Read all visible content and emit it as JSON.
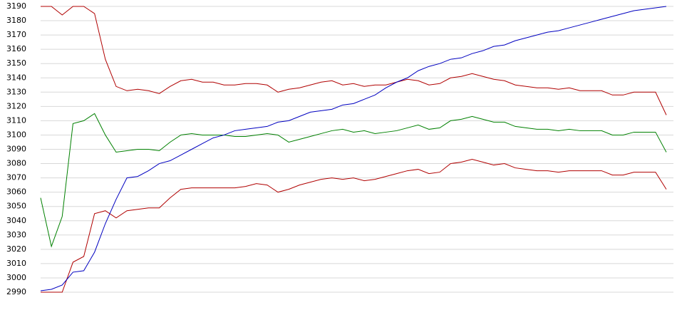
{
  "chart_data": {
    "type": "line",
    "categories": [
      null,
      null,
      null,
      null,
      null,
      null,
      null,
      null,
      null,
      null,
      null,
      null,
      null,
      null,
      null,
      null,
      null,
      null,
      null,
      null,
      null,
      null,
      null,
      null,
      null,
      null,
      null,
      null,
      null,
      null,
      null,
      null,
      null,
      null,
      null,
      null,
      null,
      null,
      null,
      null,
      null,
      null,
      null,
      null,
      null,
      null,
      null,
      null,
      null,
      null,
      null,
      null,
      null,
      null,
      null,
      null,
      null,
      null,
      null
    ],
    "series": [
      {
        "color": "#b00000",
        "values": [
          3190,
          3190,
          3184,
          3190,
          3190,
          3185,
          3153,
          3134,
          3131,
          3132,
          3131,
          3129,
          3134,
          3138,
          3139,
          3137,
          3137,
          3135,
          3135,
          3136,
          3136,
          3135,
          3130,
          3132,
          3133,
          3135,
          3137,
          3138,
          3135,
          3136,
          3134,
          3135,
          3135,
          3137,
          3139,
          3138,
          3135,
          3136,
          3140,
          3141,
          3143,
          3141,
          3139,
          3138,
          3135,
          3134,
          3133,
          3133,
          3132,
          3133,
          3131,
          3131,
          3131,
          3128,
          3128,
          3130,
          3130,
          3130,
          3114
        ]
      },
      {
        "color": "#008000",
        "values": [
          3056,
          3022,
          3043,
          3108,
          3110,
          3115,
          3100,
          3088,
          3089,
          3090,
          3090,
          3089,
          3095,
          3100,
          3101,
          3100,
          3100,
          3100,
          3099,
          3099,
          3100,
          3101,
          3100,
          3095,
          3097,
          3099,
          3101,
          3103,
          3104,
          3102,
          3103,
          3101,
          3102,
          3103,
          3105,
          3107,
          3104,
          3105,
          3110,
          3111,
          3113,
          3111,
          3109,
          3109,
          3106,
          3105,
          3104,
          3104,
          3103,
          3104,
          3103,
          3103,
          3103,
          3100,
          3100,
          3102,
          3102,
          3102,
          3088
        ]
      },
      {
        "color": "#b00000",
        "values": [
          2990,
          2990,
          2990,
          3011,
          3015,
          3045,
          3047,
          3042,
          3047,
          3048,
          3049,
          3049,
          3056,
          3062,
          3063,
          3063,
          3063,
          3063,
          3063,
          3064,
          3066,
          3065,
          3060,
          3062,
          3065,
          3067,
          3069,
          3070,
          3069,
          3070,
          3068,
          3069,
          3071,
          3073,
          3075,
          3076,
          3073,
          3074,
          3080,
          3081,
          3083,
          3081,
          3079,
          3080,
          3077,
          3076,
          3075,
          3075,
          3074,
          3075,
          3075,
          3075,
          3075,
          3072,
          3072,
          3074,
          3074,
          3074,
          3062
        ]
      },
      {
        "color": "#0000c0",
        "values": [
          2991,
          2992,
          2995,
          3004,
          3005,
          3018,
          3038,
          3055,
          3070,
          3071,
          3075,
          3080,
          3082,
          3086,
          3090,
          3094,
          3098,
          3100,
          3103,
          3104,
          3105,
          3106,
          3109,
          3110,
          3113,
          3116,
          3117,
          3118,
          3121,
          3122,
          3125,
          3128,
          3133,
          3137,
          3140,
          3145,
          3148,
          3150,
          3153,
          3154,
          3157,
          3159,
          3162,
          3163,
          3166,
          3168,
          3170,
          3172,
          3173,
          3175,
          3177,
          3179,
          3181,
          3183,
          3185,
          3187,
          3188,
          3189,
          3190
        ]
      }
    ],
    "ylim": [
      2990,
      3190
    ],
    "yticks": [
      2990,
      3000,
      3010,
      3020,
      3030,
      3040,
      3050,
      3060,
      3070,
      3080,
      3090,
      3100,
      3110,
      3120,
      3130,
      3140,
      3150,
      3160,
      3170,
      3180,
      3190
    ],
    "grid": true
  }
}
